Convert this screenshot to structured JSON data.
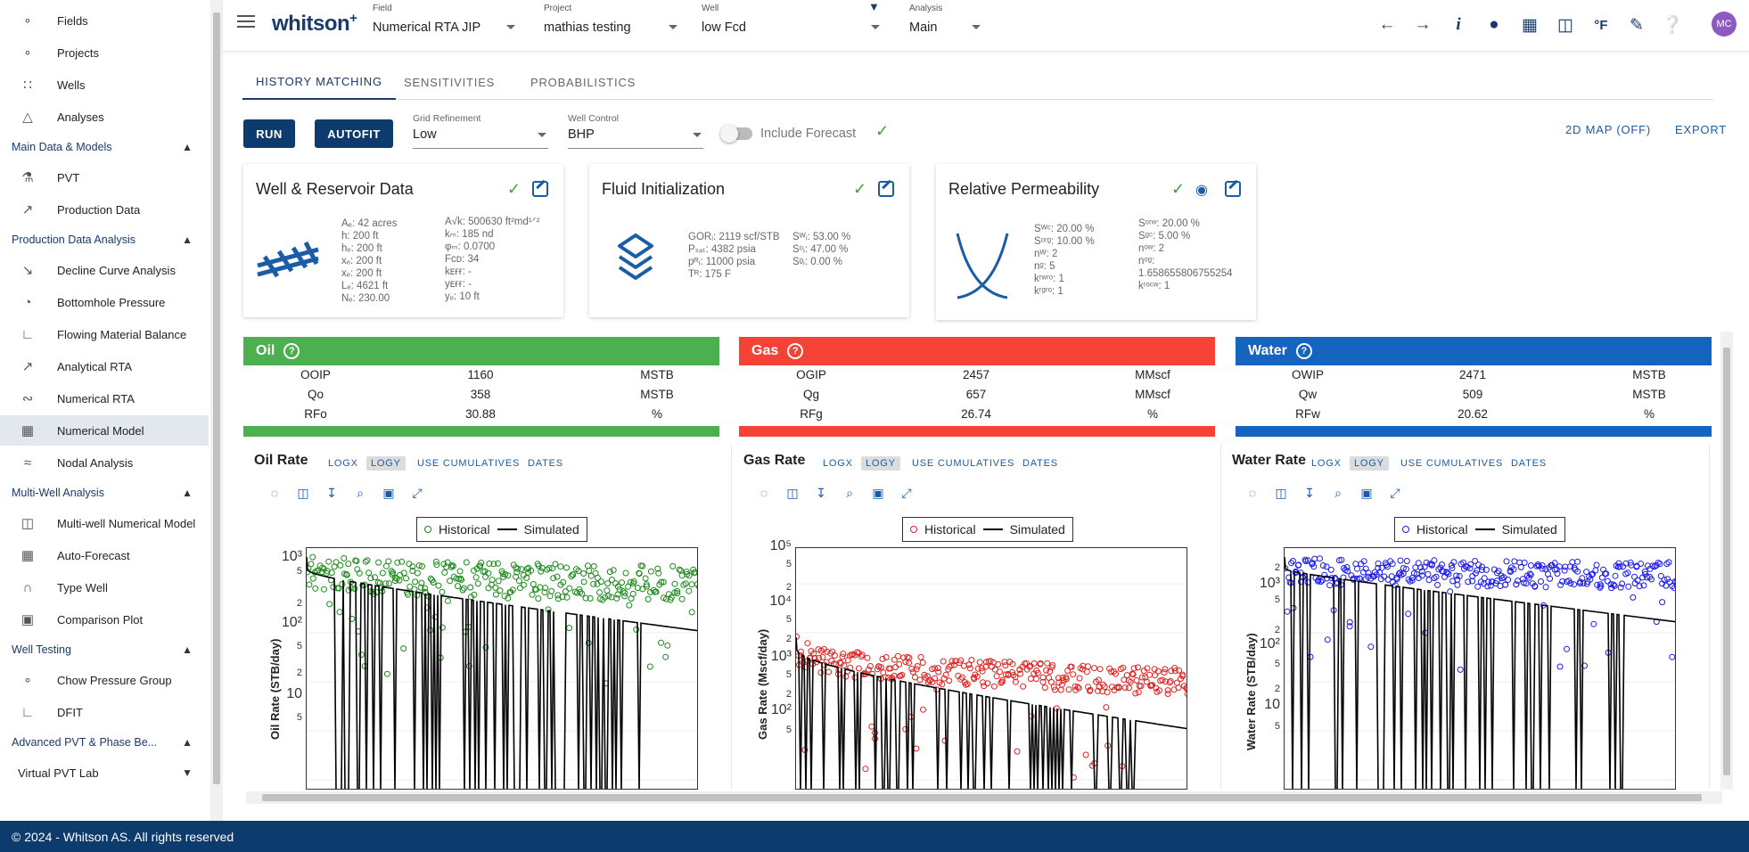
{
  "sidebar": {
    "top_items": [
      {
        "label": "Fields",
        "icon": "nodes-icon"
      },
      {
        "label": "Projects",
        "icon": "nodes-icon"
      },
      {
        "label": "Wells",
        "icon": "grid-dots-icon"
      },
      {
        "label": "Analyses",
        "icon": "tree-icon"
      }
    ],
    "sections": [
      {
        "title": "Main Data & Models",
        "items": [
          {
            "label": "PVT",
            "icon": "flask-icon"
          },
          {
            "label": "Production Data",
            "icon": "trend-icon"
          }
        ]
      },
      {
        "title": "Production Data Analysis",
        "items": [
          {
            "label": "Decline Curve Analysis",
            "icon": "decline-icon"
          },
          {
            "label": "Bottomhole Pressure",
            "icon": "gauge-icon"
          },
          {
            "label": "Flowing Material Balance",
            "icon": "chart-icon"
          },
          {
            "label": "Analytical RTA",
            "icon": "trend-icon"
          },
          {
            "label": "Numerical RTA",
            "icon": "curve-icon"
          },
          {
            "label": "Numerical Model",
            "icon": "grid-icon",
            "active": true
          },
          {
            "label": "Nodal Analysis",
            "icon": "nodal-icon"
          }
        ]
      },
      {
        "title": "Multi-Well Analysis",
        "items": [
          {
            "label": "Multi-well Numerical Model",
            "icon": "columns-icon"
          },
          {
            "label": "Auto-Forecast",
            "icon": "tiles-icon"
          },
          {
            "label": "Type Well",
            "icon": "typewell-icon"
          },
          {
            "label": "Comparison Plot",
            "icon": "compare-icon"
          }
        ]
      },
      {
        "title": "Well Testing",
        "items": [
          {
            "label": "Chow Pressure Group",
            "icon": "chain-icon"
          },
          {
            "label": "DFIT",
            "icon": "dfit-icon"
          }
        ]
      },
      {
        "title": "Advanced PVT & Phase Be...",
        "items": []
      }
    ],
    "virtual_pvt_lab": "Virtual PVT Lab"
  },
  "topbar": {
    "logo": "whitson",
    "logo_sup": "+",
    "field": {
      "label": "Field",
      "value": "Numerical RTA JIP"
    },
    "project": {
      "label": "Project",
      "value": "mathias testing"
    },
    "well": {
      "label": "Well",
      "value": "low Fcd"
    },
    "analysis": {
      "label": "Analysis",
      "value": "Main"
    },
    "avatar": "MC"
  },
  "tabs": [
    "HISTORY MATCHING",
    "SENSITIVITIES",
    "PROBABILISTICS"
  ],
  "controls": {
    "run": "RUN",
    "autofit": "AUTOFIT",
    "grid_refinement": {
      "label": "Grid Refinement",
      "value": "Low"
    },
    "well_control": {
      "label": "Well Control",
      "value": "BHP"
    },
    "include_forecast": "Include Forecast",
    "map": "2D MAP (OFF)",
    "export": "EXPORT"
  },
  "cards": {
    "well_reservoir": {
      "title": "Well & Reservoir Data",
      "col1": [
        "Aₑ: 42 acres",
        "h: 200 ft",
        "hₑ: 200 ft",
        "xₑ: 200 ft",
        "xₑ: 200 ft",
        "Lₑ: 4621 ft",
        "Nₑ: 230.00"
      ],
      "col2": [
        "A√k: 500630 ft²md¹ᐟ²",
        "kₘ: 185 nd",
        "φₘ: 0.0700",
        "Fᴄᴅ: 34",
        "kᴇғғ: -",
        "yᴇғғ: -",
        "yₑ: 10 ft"
      ]
    },
    "fluid_init": {
      "title": "Fluid Initialization",
      "col1": [
        "GORᵢ: 2119 scf/STB",
        "Pₛₐₜ: 4382 psia",
        "pᴿᵢ: 11000 psia",
        "Tᴿ: 175 F"
      ],
      "col2": [
        "",
        "Sᵂᵢ: 53.00 %",
        "Sᵒᵢ: 47.00 %",
        "Sᵍᵢ: 0.00 %"
      ]
    },
    "relperm": {
      "title": "Relative Permeability",
      "col1": [
        "Sᵂᶜ: 20.00 %",
        "Sᵒʳᵍ: 10.00 %",
        "nᵂ: 2",
        "nᵍ: 5",
        "kʳʷʳᵒ: 1",
        "kʳᵍʳᵒ: 1"
      ],
      "col2": [
        "Sᵒʳʷ: 20.00 %",
        "Sᵍᶜ: 5.00 %",
        "nᵒʷ: 2",
        "nᵒᵍ:",
        "1.658655806755254",
        "kʳᵒᶜʷ: 1"
      ]
    }
  },
  "summaries": [
    {
      "title": "Oil",
      "color": "#4caf50",
      "rows": [
        [
          "OOIP",
          "1160",
          "MSTB"
        ],
        [
          "Qo",
          "358",
          "MSTB"
        ],
        [
          "RFo",
          "30.88",
          "%"
        ]
      ]
    },
    {
      "title": "Gas",
      "color": "#f44336",
      "rows": [
        [
          "OGIP",
          "2457",
          "MMscf"
        ],
        [
          "Qg",
          "657",
          "MMscf"
        ],
        [
          "RFg",
          "26.74",
          "%"
        ]
      ]
    },
    {
      "title": "Water",
      "color": "#1565c0",
      "rows": [
        [
          "OWIP",
          "2471",
          "MSTB"
        ],
        [
          "Qw",
          "509",
          "MSTB"
        ],
        [
          "RFw",
          "20.62",
          "%"
        ]
      ]
    }
  ],
  "charts": [
    {
      "title": "Oil Rate",
      "ylabel": "Oil Rate (STB/day)",
      "color": "#1a8a1a",
      "ticks": [
        {
          "t": "10³",
          "big": true,
          "y": 12
        },
        {
          "t": "5",
          "y": 28
        },
        {
          "t": "2",
          "y": 64
        },
        {
          "t": "10²",
          "big": true,
          "y": 86
        },
        {
          "t": "5",
          "y": 112
        },
        {
          "t": "2",
          "y": 142
        },
        {
          "t": "10",
          "big": true,
          "y": 166
        },
        {
          "t": "5",
          "y": 192
        }
      ]
    },
    {
      "title": "Gas Rate",
      "ylabel": "Gas Rate (Mscf/day)",
      "color": "#e02020",
      "ticks": [
        {
          "t": "10⁵",
          "big": true,
          "y": 0
        },
        {
          "t": "5",
          "y": 20
        },
        {
          "t": "2",
          "y": 46
        },
        {
          "t": "10⁴",
          "big": true,
          "y": 62
        },
        {
          "t": "5",
          "y": 82
        },
        {
          "t": "2",
          "y": 104
        },
        {
          "t": "10³",
          "big": true,
          "y": 124
        },
        {
          "t": "5",
          "y": 144
        },
        {
          "t": "2",
          "y": 166
        },
        {
          "t": "10²",
          "big": true,
          "y": 184
        },
        {
          "t": "5",
          "y": 206
        }
      ]
    },
    {
      "title": "Water Rate",
      "ylabel": "Water Rate (STB/day)",
      "color": "#1a1aee",
      "ticks": [
        {
          "t": "2",
          "y": 24
        },
        {
          "t": "10³",
          "big": true,
          "y": 42
        },
        {
          "t": "5",
          "y": 60
        },
        {
          "t": "2",
          "y": 94
        },
        {
          "t": "10²",
          "big": true,
          "y": 110
        },
        {
          "t": "5",
          "y": 132
        },
        {
          "t": "2",
          "y": 160
        },
        {
          "t": "10",
          "big": true,
          "y": 178
        },
        {
          "t": "5",
          "y": 202
        }
      ]
    }
  ],
  "chart_links": [
    "LOGX",
    "LOGY",
    "USE CUMULATIVES",
    "DATES"
  ],
  "legend": {
    "historical": "Historical",
    "simulated": "Simulated"
  },
  "footer": "© 2024 - Whitson AS. All rights reserved"
}
